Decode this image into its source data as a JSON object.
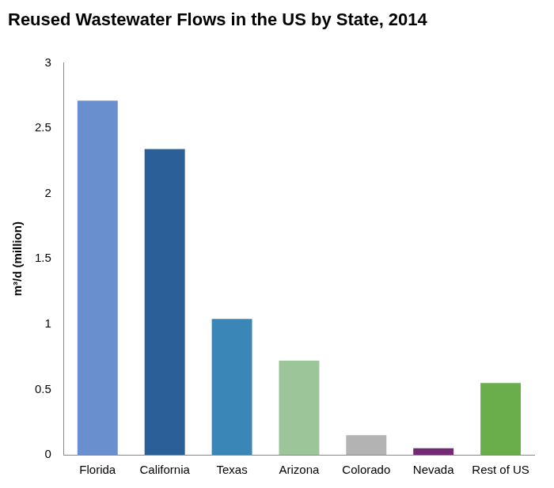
{
  "chart_data": {
    "type": "bar",
    "title": "Reused Wastewater Flows in the US by State, 2014",
    "y_label": "m³/d (million)",
    "categories": [
      "Florida",
      "California",
      "Texas",
      "Arizona",
      "Colorado",
      "Nevada",
      "Rest of US"
    ],
    "values": [
      2.71,
      2.34,
      1.04,
      0.72,
      0.15,
      0.05,
      0.55
    ],
    "colors": [
      "#6a8fcf",
      "#2b5f98",
      "#3a86b6",
      "#9cc59a",
      "#b3b3b3",
      "#722a73",
      "#6aae4c"
    ],
    "ylim": [
      0,
      3
    ],
    "yticks": [
      0,
      0.5,
      1,
      1.5,
      2,
      2.5,
      3
    ],
    "grid": false
  }
}
